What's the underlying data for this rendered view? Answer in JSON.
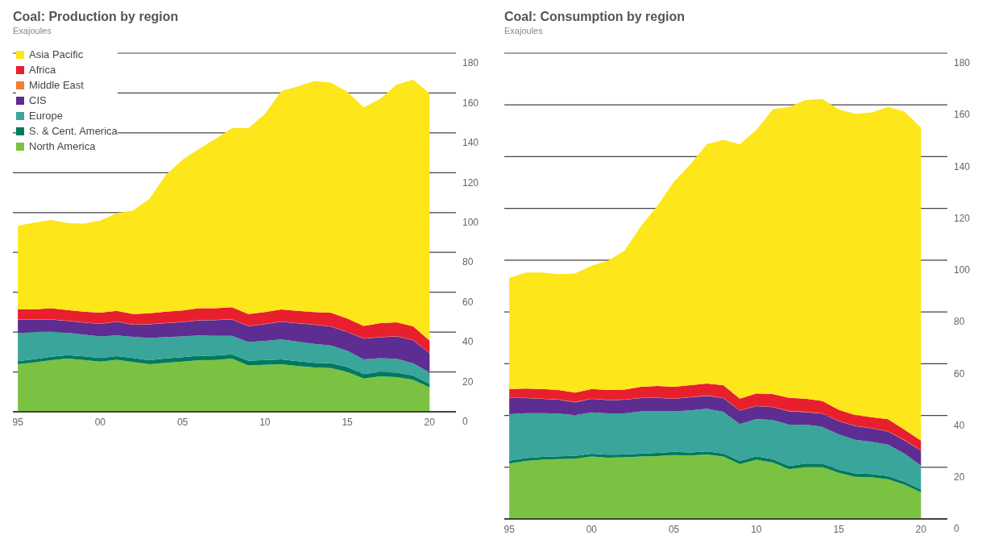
{
  "chart_data": [
    {
      "type": "area",
      "title": "Coal: Production by region",
      "subtitle": "Exajoules",
      "stacked": true,
      "grid": "y",
      "legend": "top left",
      "x": [
        1995,
        1996,
        1997,
        1998,
        1999,
        2000,
        2001,
        2002,
        2003,
        2004,
        2005,
        2006,
        2007,
        2008,
        2009,
        2010,
        2011,
        2012,
        2013,
        2014,
        2015,
        2016,
        2017,
        2018,
        2019,
        2020
      ],
      "xlim": [
        1994.7,
        2021.6
      ],
      "xticks": [
        {
          "value": 1995,
          "label": "95"
        },
        {
          "value": 2000,
          "label": "00"
        },
        {
          "value": 2005,
          "label": "05"
        },
        {
          "value": 2010,
          "label": "10"
        },
        {
          "value": 2015,
          "label": "15"
        },
        {
          "value": 2020,
          "label": "20"
        }
      ],
      "ylim": [
        0,
        180
      ],
      "yticks": [
        0,
        20,
        40,
        60,
        80,
        100,
        120,
        140,
        160,
        180
      ],
      "series": [
        {
          "name": "North America",
          "color": "#7cc242",
          "values": [
            23.9,
            24.8,
            25.9,
            26.7,
            26.0,
            25.2,
            26.1,
            25.0,
            23.9,
            24.6,
            25.2,
            25.9,
            26.0,
            26.7,
            23.3,
            23.6,
            23.9,
            23.0,
            22.2,
            21.9,
            20.0,
            16.7,
            17.8,
            17.4,
            16.1,
            12.2
          ]
        },
        {
          "name": "S. & Cent. America",
          "color": "#007a5e",
          "values": [
            1.5,
            1.6,
            1.7,
            1.7,
            1.8,
            1.8,
            1.8,
            2.0,
            2.0,
            2.2,
            2.2,
            2.2,
            2.2,
            2.1,
            2.3,
            2.4,
            2.4,
            2.4,
            2.4,
            2.5,
            2.4,
            2.2,
            2.2,
            2.2,
            2.1,
            1.8
          ]
        },
        {
          "name": "Europe",
          "color": "#3aa59a",
          "values": [
            14.0,
            13.6,
            12.6,
            11.2,
            10.9,
            10.8,
            10.4,
            10.6,
            11.1,
            10.7,
            10.4,
            10.2,
            9.9,
            9.3,
            9.4,
            9.6,
            10.0,
            9.8,
            9.5,
            8.9,
            8.2,
            7.4,
            6.9,
            7.0,
            6.2,
            5.7
          ]
        },
        {
          "name": "CIS",
          "color": "#5e2d91",
          "values": [
            6.9,
            6.3,
            6.1,
            6.0,
            6.1,
            6.3,
            6.9,
            6.1,
            6.9,
            7.0,
            7.2,
            7.6,
            7.9,
            8.2,
            8.0,
            8.4,
            8.9,
            9.2,
            9.6,
            9.5,
            9.4,
            10.4,
            10.5,
            11.2,
            11.5,
            9.7
          ]
        },
        {
          "name": "Middle East",
          "color": "#f08032",
          "values": [
            0.1,
            0.1,
            0.1,
            0.1,
            0.1,
            0.1,
            0.1,
            0.1,
            0.1,
            0.1,
            0.1,
            0.1,
            0.1,
            0.1,
            0.1,
            0.1,
            0.1,
            0.1,
            0.1,
            0.1,
            0.1,
            0.1,
            0.1,
            0.1,
            0.1,
            0.1
          ]
        },
        {
          "name": "Africa",
          "color": "#e8202e",
          "values": [
            5.0,
            5.0,
            5.6,
            5.4,
            5.4,
            5.6,
            5.4,
            5.2,
            5.5,
            5.7,
            5.8,
            6.0,
            5.9,
            6.1,
            5.9,
            6.0,
            6.1,
            6.2,
            6.3,
            6.9,
            6.7,
            6.3,
            7.0,
            7.0,
            6.9,
            6.2
          ]
        },
        {
          "name": "Asia Pacific",
          "color": "#fde619",
          "values": [
            41.9,
            43.6,
            44.3,
            43.7,
            44.2,
            46.2,
            49.0,
            52.0,
            57.5,
            68.7,
            75.6,
            80.0,
            85.0,
            89.9,
            93.4,
            99.4,
            109.6,
            112.6,
            115.9,
            115.4,
            113.9,
            109.7,
            112.5,
            119.3,
            123.8,
            124.1
          ]
        }
      ]
    },
    {
      "type": "area",
      "title": "Coal: Consumption by region",
      "subtitle": "Exajoules",
      "stacked": true,
      "grid": "y",
      "x": [
        1995,
        1996,
        1997,
        1998,
        1999,
        2000,
        2001,
        2002,
        2003,
        2004,
        2005,
        2006,
        2007,
        2008,
        2009,
        2010,
        2011,
        2012,
        2013,
        2014,
        2015,
        2016,
        2017,
        2018,
        2019,
        2020
      ],
      "xlim": [
        1994.7,
        2021.6
      ],
      "xticks": [
        {
          "value": 1995,
          "label": "95"
        },
        {
          "value": 2000,
          "label": "00"
        },
        {
          "value": 2005,
          "label": "05"
        },
        {
          "value": 2010,
          "label": "10"
        },
        {
          "value": 2015,
          "label": "15"
        },
        {
          "value": 2020,
          "label": "20"
        }
      ],
      "ylim": [
        0,
        180
      ],
      "yticks": [
        0,
        20,
        40,
        60,
        80,
        100,
        120,
        140,
        160,
        180
      ],
      "series": [
        {
          "color": "#7cc242",
          "values": [
            21.4,
            22.4,
            22.9,
            23.1,
            23.3,
            24.1,
            23.7,
            23.8,
            24.1,
            24.3,
            24.7,
            24.5,
            24.9,
            24.1,
            21.2,
            22.9,
            21.8,
            19.2,
            20.1,
            20.1,
            17.8,
            16.3,
            16.1,
            15.3,
            13.2,
            10.3
          ]
        },
        {
          "color": "#007a5e",
          "values": [
            1.1,
            1.1,
            1.1,
            1.1,
            1.1,
            1.1,
            1.1,
            1.1,
            1.1,
            1.2,
            1.2,
            1.2,
            1.2,
            1.2,
            1.2,
            1.3,
            1.3,
            1.3,
            1.3,
            1.3,
            1.3,
            1.3,
            1.3,
            1.3,
            1.2,
            1.1
          ]
        },
        {
          "color": "#3aa59a",
          "values": [
            18.0,
            17.4,
            16.9,
            16.5,
            15.7,
            16.0,
            16.0,
            15.9,
            16.4,
            16.1,
            15.7,
            16.3,
            16.5,
            16.1,
            14.3,
            14.4,
            15.1,
            15.9,
            15.0,
            14.2,
            13.6,
            13.0,
            12.4,
            12.1,
            10.8,
            9.2
          ]
        },
        {
          "color": "#5e2d91",
          "values": [
            6.2,
            5.8,
            5.5,
            5.4,
            5.0,
            5.2,
            5.1,
            5.3,
            5.1,
            5.2,
            4.8,
            5.0,
            5.0,
            5.3,
            5.2,
            5.0,
            5.0,
            5.2,
            4.9,
            5.1,
            5.1,
            5.3,
            5.2,
            5.1,
            5.2,
            5.8
          ]
        },
        {
          "color": "#f08032",
          "values": [
            0.1,
            0.1,
            0.1,
            0.1,
            0.1,
            0.1,
            0.1,
            0.1,
            0.1,
            0.1,
            0.1,
            0.1,
            0.1,
            0.1,
            0.1,
            0.1,
            0.1,
            0.1,
            0.1,
            0.1,
            0.1,
            0.1,
            0.1,
            0.1,
            0.1,
            0.1
          ]
        },
        {
          "color": "#e8202e",
          "values": [
            3.4,
            3.6,
            3.7,
            3.6,
            3.6,
            3.7,
            3.8,
            3.8,
            4.3,
            4.5,
            4.6,
            4.6,
            4.6,
            4.9,
            4.5,
            4.8,
            5.0,
            5.1,
            5.1,
            4.8,
            4.3,
            4.2,
            4.2,
            4.6,
            4.0,
            3.8
          ]
        },
        {
          "color": "#fde619",
          "values": [
            42.9,
            44.8,
            45.0,
            44.8,
            46.1,
            47.7,
            50.0,
            53.7,
            62.0,
            69.7,
            79.2,
            85.4,
            92.5,
            94.8,
            98.3,
            101.8,
            110.0,
            112.4,
            115.4,
            116.7,
            116.1,
            116.4,
            117.8,
            120.7,
            122.9,
            120.9
          ]
        }
      ]
    }
  ]
}
